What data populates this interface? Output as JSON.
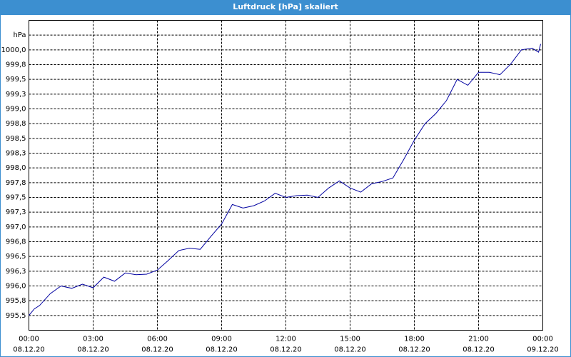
{
  "chart_data": {
    "type": "line",
    "title": "Luftdruck [hPa] skaliert",
    "x": [
      0,
      0.25,
      0.5,
      1,
      1.5,
      2,
      2.5,
      3,
      3.5,
      4,
      4.5,
      5,
      5.5,
      6,
      6.5,
      7,
      7.5,
      8,
      8.5,
      9,
      9.5,
      10,
      10.5,
      11,
      11.5,
      12,
      12.5,
      13,
      13.5,
      14,
      14.5,
      15,
      15.5,
      16,
      16.5,
      17,
      17.5,
      18,
      18.5,
      19,
      19.5,
      20,
      20.5,
      21,
      21.5,
      22,
      22.5,
      23,
      23.5,
      23.8,
      23.9
    ],
    "series": [
      {
        "name": "Luftdruck",
        "color": "#0000a0",
        "values": [
          995.5,
          995.61,
          995.67,
          995.87,
          996.0,
          995.96,
          996.03,
          995.97,
          996.15,
          996.08,
          996.22,
          996.19,
          996.2,
          996.27,
          996.43,
          996.6,
          996.64,
          996.62,
          996.84,
          997.05,
          997.38,
          997.32,
          997.36,
          997.44,
          997.57,
          997.5,
          997.53,
          997.54,
          997.5,
          997.66,
          997.78,
          997.66,
          997.59,
          997.73,
          997.77,
          997.83,
          998.14,
          998.47,
          998.75,
          998.92,
          999.14,
          999.5,
          999.4,
          999.62,
          999.62,
          999.58,
          999.76,
          1000.0,
          1000.03,
          999.96,
          1000.1
        ]
      }
    ],
    "xlim": [
      0,
      24
    ],
    "xticks": [
      {
        "value": 0,
        "label": "00:00"
      },
      {
        "value": 3,
        "label": "03:00"
      },
      {
        "value": 6,
        "label": "06:00"
      },
      {
        "value": 9,
        "label": "09:00"
      },
      {
        "value": 12,
        "label": "12:00"
      },
      {
        "value": 15,
        "label": "15:00"
      },
      {
        "value": 18,
        "label": "18:00"
      },
      {
        "value": 21,
        "label": "21:00"
      },
      {
        "value": 24,
        "label": "00:00"
      }
    ],
    "xtick_dates": [
      "08.12.20",
      "08.12.20",
      "08.12.20",
      "08.12.20",
      "08.12.20",
      "08.12.20",
      "08.12.20",
      "08.12.20",
      "09.12.20"
    ],
    "ylim": [
      995.25,
      1000.5
    ],
    "yticks": [
      {
        "value": 995.5,
        "label": "995,5"
      },
      {
        "value": 995.75,
        "label": "995,8"
      },
      {
        "value": 996,
        "label": "996,0"
      },
      {
        "value": 996.25,
        "label": "996,3"
      },
      {
        "value": 996.5,
        "label": "996,5"
      },
      {
        "value": 996.75,
        "label": "996,8"
      },
      {
        "value": 997,
        "label": "997,0"
      },
      {
        "value": 997.25,
        "label": "997,3"
      },
      {
        "value": 997.5,
        "label": "997,5"
      },
      {
        "value": 997.75,
        "label": "997,8"
      },
      {
        "value": 998,
        "label": "998,0"
      },
      {
        "value": 998.25,
        "label": "998,3"
      },
      {
        "value": 998.5,
        "label": "998,5"
      },
      {
        "value": 998.75,
        "label": "998,8"
      },
      {
        "value": 999,
        "label": "999,0"
      },
      {
        "value": 999.25,
        "label": "999,3"
      },
      {
        "value": 999.5,
        "label": "999,5"
      },
      {
        "value": 999.75,
        "label": "999,8"
      },
      {
        "value": 1000,
        "label": "1000,0"
      },
      {
        "value": 1000.25,
        "label": "hPa"
      }
    ],
    "grid": true
  }
}
